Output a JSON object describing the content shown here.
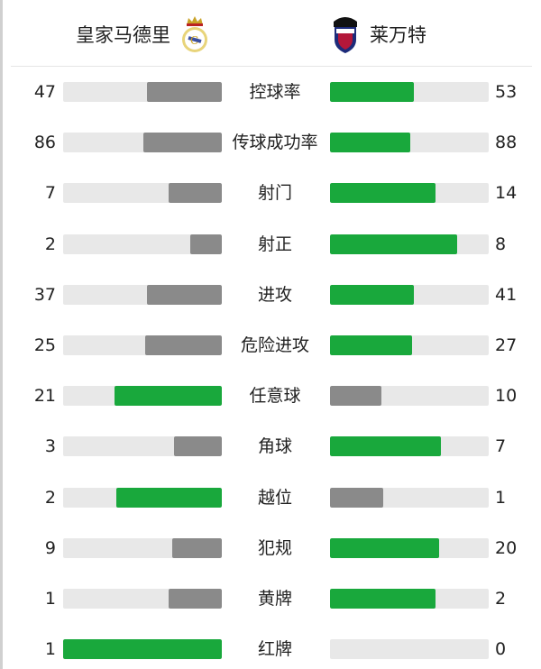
{
  "header": {
    "home_team": "皇家马德里",
    "away_team": "莱万特",
    "home_crest_icon": "real-madrid-crest",
    "away_crest_icon": "levante-crest"
  },
  "colors": {
    "leader": "#19a83c",
    "trailer": "#8a8a8a",
    "track": "#e8e8e8"
  },
  "stats": [
    {
      "label": "控球率",
      "home": "47",
      "away": "53"
    },
    {
      "label": "传球成功率",
      "home": "86",
      "away": "88"
    },
    {
      "label": "射门",
      "home": "7",
      "away": "14"
    },
    {
      "label": "射正",
      "home": "2",
      "away": "8"
    },
    {
      "label": "进攻",
      "home": "37",
      "away": "41"
    },
    {
      "label": "危险进攻",
      "home": "25",
      "away": "27"
    },
    {
      "label": "任意球",
      "home": "21",
      "away": "10"
    },
    {
      "label": "角球",
      "home": "3",
      "away": "7"
    },
    {
      "label": "越位",
      "home": "2",
      "away": "1"
    },
    {
      "label": "犯规",
      "home": "9",
      "away": "20"
    },
    {
      "label": "黄牌",
      "home": "1",
      "away": "2"
    },
    {
      "label": "红牌",
      "home": "1",
      "away": "0"
    }
  ]
}
